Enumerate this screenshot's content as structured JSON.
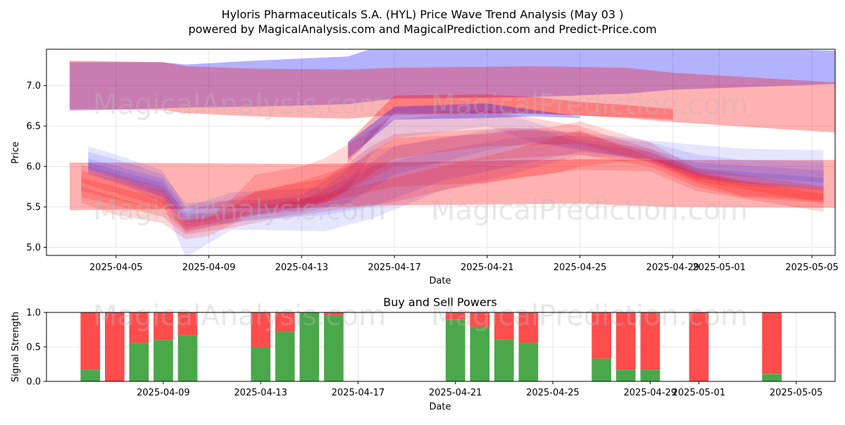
{
  "figure": {
    "title_line1": "Hyloris Pharmaceuticals S.A. (HYL) Price Wave Trend Analysis (May 03 )",
    "title_line2": "powered by MagicalAnalysis.com and MagicalPrediction.com and Predict-Price.com",
    "watermarks": [
      "MagicalAnalysis.com",
      "MagicalPrediction.com"
    ]
  },
  "colors": {
    "red": "#ff0000",
    "blue": "#0000ff",
    "buy": "#4aa84a",
    "sell": "#ff4c4c"
  },
  "chart_data": [
    {
      "type": "area",
      "title": "",
      "xlabel": "Date",
      "ylabel": "Price",
      "x_range": [
        "2025-04-02",
        "2025-05-06"
      ],
      "ylim": [
        4.9,
        7.45
      ],
      "grid": true,
      "x_ticks": [
        "2025-04-05",
        "2025-04-09",
        "2025-04-13",
        "2025-04-17",
        "2025-04-21",
        "2025-04-25",
        "2025-04-29",
        "2025-05-01",
        "2025-05-05"
      ],
      "y_ticks": [
        5.0,
        5.5,
        6.0,
        6.5,
        7.0
      ],
      "bands": [
        {
          "color": "blue",
          "x": [
            "2025-04-03",
            "2025-04-07",
            "2025-04-08",
            "2025-04-11",
            "2025-04-15",
            "2025-04-17",
            "2025-04-23",
            "2025-04-27",
            "2025-04-29",
            "2025-05-06"
          ],
          "lower": [
            6.69,
            6.72,
            6.73,
            6.74,
            6.77,
            6.84,
            6.86,
            6.9,
            6.95,
            7.02
          ],
          "upper": [
            7.29,
            7.29,
            7.26,
            7.31,
            7.36,
            7.55,
            7.58,
            7.53,
            7.5,
            7.43
          ]
        },
        {
          "color": "red",
          "x": [
            "2025-04-03",
            "2025-04-07",
            "2025-04-08",
            "2025-04-11",
            "2025-04-15",
            "2025-04-17",
            "2025-04-23",
            "2025-04-27",
            "2025-04-29",
            "2025-05-06"
          ],
          "lower": [
            6.71,
            6.7,
            6.66,
            6.62,
            6.59,
            6.64,
            6.66,
            6.6,
            6.55,
            6.42
          ],
          "upper": [
            7.31,
            7.29,
            7.24,
            7.21,
            7.2,
            7.22,
            7.24,
            7.22,
            7.16,
            7.04
          ]
        },
        {
          "color": "red",
          "x": [
            "2025-04-03",
            "2025-04-09",
            "2025-04-13",
            "2025-04-17",
            "2025-04-21",
            "2025-04-25",
            "2025-04-29",
            "2025-05-06"
          ],
          "lower": [
            5.46,
            5.48,
            5.49,
            5.52,
            5.53,
            5.54,
            5.5,
            5.49
          ],
          "upper": [
            6.05,
            6.04,
            6.03,
            6.05,
            6.07,
            6.09,
            6.08,
            6.08
          ]
        },
        {
          "color": "red",
          "x": [
            "2025-04-15",
            "2025-04-17",
            "2025-04-21",
            "2025-04-23",
            "2025-04-25",
            "2025-04-27",
            "2025-04-29"
          ],
          "lower": [
            6.05,
            6.66,
            6.66,
            6.65,
            6.63,
            6.61,
            6.58
          ],
          "upper": [
            6.3,
            6.88,
            6.89,
            6.86,
            6.8,
            6.76,
            6.71
          ]
        },
        {
          "color": "blue",
          "x": [
            "2025-04-15",
            "2025-04-17",
            "2025-04-21",
            "2025-04-23",
            "2025-04-25"
          ],
          "lower": [
            6.1,
            6.58,
            6.6,
            6.62,
            6.6
          ],
          "upper": [
            6.3,
            6.74,
            6.78,
            6.7,
            6.62
          ]
        }
      ],
      "waves": [
        {
          "color": "blue",
          "x": [
            "2025-04-03.8",
            "2025-04-05.5",
            "2025-04-07",
            "2025-04-08",
            "2025-04-10",
            "2025-04-14",
            "2025-04-16",
            "2025-04-19",
            "2025-04-22",
            "2025-04-25",
            "2025-04-28",
            "2025-04-30",
            "2025-05-02",
            "2025-05-05.5"
          ],
          "lower": [
            5.9,
            5.75,
            5.55,
            4.88,
            5.22,
            5.2,
            5.35,
            5.7,
            5.9,
            6.14,
            6.08,
            5.87,
            5.76,
            5.72
          ],
          "upper": [
            6.25,
            6.1,
            5.95,
            5.5,
            5.68,
            5.74,
            6.2,
            6.35,
            6.45,
            6.42,
            6.32,
            6.27,
            6.22,
            6.2
          ]
        },
        {
          "color": "blue",
          "x": [
            "2025-04-03.8",
            "2025-04-05.5",
            "2025-04-07",
            "2025-04-08",
            "2025-04-10",
            "2025-04-14",
            "2025-04-16",
            "2025-04-19",
            "2025-04-22",
            "2025-04-25",
            "2025-04-28",
            "2025-04-30",
            "2025-05-02",
            "2025-05-05.5"
          ],
          "lower": [
            5.95,
            5.8,
            5.62,
            5.18,
            5.32,
            5.4,
            5.5,
            5.82,
            6.0,
            6.18,
            6.1,
            5.9,
            5.78,
            5.74
          ],
          "upper": [
            6.18,
            6.05,
            5.9,
            5.55,
            5.58,
            5.62,
            6.0,
            6.2,
            6.35,
            6.38,
            6.3,
            6.15,
            6.08,
            6.06
          ]
        },
        {
          "color": "blue",
          "x": [
            "2025-04-03.8",
            "2025-04-07",
            "2025-04-08",
            "2025-04-10",
            "2025-04-13",
            "2025-04-15",
            "2025-04-16",
            "2025-04-17",
            "2025-04-21",
            "2025-04-23",
            "2025-04-25",
            "2025-04-28",
            "2025-04-30",
            "2025-05-05.5"
          ],
          "lower": [
            5.98,
            5.68,
            5.3,
            5.36,
            5.48,
            5.7,
            6.15,
            6.35,
            6.5,
            6.3,
            6.2,
            6.08,
            5.92,
            5.8
          ],
          "upper": [
            6.1,
            5.85,
            5.48,
            5.5,
            5.65,
            6.0,
            6.45,
            6.58,
            6.7,
            6.55,
            6.34,
            6.22,
            6.05,
            5.95
          ]
        },
        {
          "color": "blue",
          "x": [
            "2025-04-03.8",
            "2025-04-07",
            "2025-04-08",
            "2025-04-10",
            "2025-04-13",
            "2025-04-15",
            "2025-04-17",
            "2025-04-21",
            "2025-04-23",
            "2025-04-25",
            "2025-04-28",
            "2025-04-30",
            "2025-05-05.5"
          ],
          "lower": [
            5.92,
            5.62,
            5.26,
            5.3,
            5.42,
            5.55,
            5.9,
            6.2,
            6.3,
            6.22,
            6.05,
            5.85,
            5.7
          ],
          "upper": [
            6.05,
            5.8,
            5.42,
            5.44,
            5.58,
            5.85,
            6.25,
            6.45,
            6.48,
            6.3,
            6.18,
            5.98,
            5.86
          ]
        },
        {
          "color": "red",
          "x": [
            "2025-04-03.5",
            "2025-04-05",
            "2025-04-07",
            "2025-04-08",
            "2025-04-09",
            "2025-04-10",
            "2025-04-11",
            "2025-04-13",
            "2025-04-14",
            "2025-04-16",
            "2025-04-17",
            "2025-04-21",
            "2025-04-25",
            "2025-04-28",
            "2025-04-30",
            "2025-05-02",
            "2025-05-05.5"
          ],
          "lower": [
            5.55,
            5.4,
            5.3,
            5.1,
            5.14,
            5.28,
            5.4,
            5.45,
            5.55,
            5.9,
            6.1,
            6.25,
            6.28,
            6.05,
            5.8,
            5.64,
            5.58
          ],
          "upper": [
            5.75,
            5.62,
            5.45,
            5.32,
            5.36,
            5.6,
            5.9,
            6.0,
            6.1,
            6.45,
            6.65,
            6.7,
            6.5,
            6.22,
            5.95,
            5.82,
            5.74
          ]
        },
        {
          "color": "red",
          "x": [
            "2025-04-03.5",
            "2025-04-07",
            "2025-04-08",
            "2025-04-10",
            "2025-04-11",
            "2025-04-14",
            "2025-04-16",
            "2025-04-17",
            "2025-04-22",
            "2025-04-25",
            "2025-04-28",
            "2025-04-30",
            "2025-05-02",
            "2025-05-05.5"
          ],
          "lower": [
            5.7,
            5.45,
            5.2,
            5.3,
            5.5,
            5.55,
            5.85,
            6.0,
            6.1,
            6.15,
            6.0,
            5.75,
            5.62,
            5.55
          ],
          "upper": [
            5.95,
            5.7,
            5.38,
            5.5,
            5.7,
            5.85,
            6.25,
            6.4,
            6.48,
            6.42,
            6.18,
            5.92,
            5.78,
            5.72
          ]
        },
        {
          "color": "red",
          "x": [
            "2025-04-03.5",
            "2025-04-07",
            "2025-04-08",
            "2025-04-10",
            "2025-04-12",
            "2025-04-15",
            "2025-04-17",
            "2025-04-19",
            "2025-04-22",
            "2025-04-25",
            "2025-04-28",
            "2025-04-30",
            "2025-05-05.5"
          ],
          "lower": [
            5.62,
            5.38,
            5.16,
            5.24,
            5.36,
            5.48,
            5.56,
            5.7,
            5.85,
            5.96,
            5.94,
            5.7,
            5.44
          ],
          "upper": [
            5.86,
            5.6,
            5.34,
            5.42,
            5.55,
            5.72,
            5.86,
            6.0,
            6.2,
            6.45,
            6.12,
            5.92,
            5.66
          ]
        },
        {
          "color": "red",
          "x": [
            "2025-04-03.5",
            "2025-04-07",
            "2025-04-08",
            "2025-04-10",
            "2025-04-13",
            "2025-04-15",
            "2025-04-17",
            "2025-04-21",
            "2025-04-24",
            "2025-04-25",
            "2025-04-28",
            "2025-04-30",
            "2025-05-05.5"
          ],
          "lower": [
            5.8,
            5.5,
            5.22,
            5.36,
            5.5,
            5.62,
            5.75,
            5.8,
            5.92,
            6.0,
            6.1,
            5.82,
            5.55
          ],
          "upper": [
            6.02,
            5.75,
            5.45,
            5.6,
            5.82,
            6.0,
            6.35,
            6.4,
            6.5,
            6.56,
            6.3,
            5.98,
            5.75
          ]
        }
      ]
    },
    {
      "type": "bar",
      "title": "Buy and Sell Powers",
      "xlabel": "Date",
      "ylabel": "Signal Strength",
      "x_range": [
        "2025-04-04.2",
        "2025-05-06.6"
      ],
      "ylim": [
        0,
        1
      ],
      "grid": true,
      "x_ticks": [
        "2025-04-09",
        "2025-04-13",
        "2025-04-17",
        "2025-04-21",
        "2025-04-25",
        "2025-04-29",
        "2025-05-01",
        "2025-05-05"
      ],
      "y_ticks": [
        0.0,
        0.5,
        1.0
      ],
      "categories": [
        "2025-04-06",
        "2025-04-07",
        "2025-04-08",
        "2025-04-09",
        "2025-04-10",
        "2025-04-13",
        "2025-04-14",
        "2025-04-15",
        "2025-04-16",
        "2025-04-21",
        "2025-04-22",
        "2025-04-23",
        "2025-04-24",
        "2025-04-27",
        "2025-04-28",
        "2025-04-29",
        "2025-05-01",
        "2025-05-04"
      ],
      "series": [
        {
          "name": "buy",
          "values": [
            0.17,
            0.0,
            0.56,
            0.6,
            0.67,
            0.5,
            0.72,
            1.0,
            0.95,
            0.89,
            0.79,
            0.61,
            0.56,
            0.33,
            0.17,
            0.17,
            0.0,
            0.11
          ]
        },
        {
          "name": "sell",
          "values": [
            0.83,
            1.0,
            0.44,
            0.4,
            0.33,
            0.5,
            0.28,
            0.0,
            0.05,
            0.11,
            0.21,
            0.39,
            0.44,
            0.67,
            0.83,
            0.83,
            1.0,
            0.89
          ]
        }
      ]
    }
  ]
}
